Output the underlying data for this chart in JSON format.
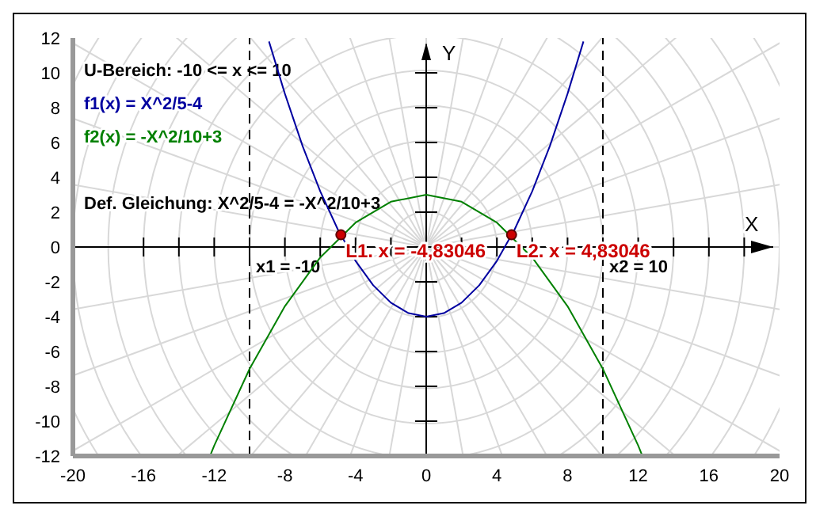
{
  "chart_data": {
    "type": "line",
    "xlabel": "X",
    "ylabel": "Y",
    "xlim": [
      -20,
      20
    ],
    "ylim": [
      -12,
      12
    ],
    "xticks": [
      -20,
      -16,
      -12,
      -8,
      -4,
      0,
      4,
      8,
      12,
      16,
      20
    ],
    "yticks": [
      -12,
      -10,
      -8,
      -6,
      -4,
      -2,
      0,
      2,
      4,
      6,
      8,
      10,
      12
    ],
    "grid": true,
    "marker": "none",
    "annotations": [
      "U-Bereich: -10 <= x <= 10",
      "Def. Gleichung: X^2/5-4 = -X^2/10+3"
    ],
    "ref_lines": [
      {
        "axis": "x",
        "value": -10,
        "label": "x1 = -10",
        "color": "#000000",
        "line_style": "dashed"
      },
      {
        "axis": "x",
        "value": 10,
        "label": "x2 = 10",
        "color": "#000000",
        "line_style": "dashed"
      }
    ],
    "series": [
      {
        "name": "f1(x) = X^2/5-4",
        "color": "#0000a0",
        "x": [
          -8.9,
          -8,
          -7,
          -6,
          -5,
          -4,
          -3,
          -2,
          -1,
          0,
          1,
          2,
          3,
          4,
          5,
          6,
          7,
          8,
          8.9
        ],
        "values": [
          11.8,
          8.8,
          5.8,
          3.2,
          1,
          -0.8,
          -2.2,
          -3.2,
          -3.8,
          -4,
          -3.8,
          -3.2,
          -2.2,
          -0.8,
          1,
          3.2,
          5.8,
          8.8,
          11.8
        ]
      },
      {
        "name": "f2(x) = -X^2/10+3",
        "color": "#008000",
        "x": [
          -12.2,
          -12,
          -10,
          -8,
          -6,
          -4,
          -2,
          0,
          2,
          4,
          6,
          8,
          10,
          12,
          12.2
        ],
        "values": [
          -11.9,
          -11.4,
          -7,
          -3.4,
          -0.6,
          1.4,
          2.6,
          3,
          2.6,
          1.4,
          -0.6,
          -3.4,
          -7,
          -11.4,
          -11.9
        ]
      },
      {
        "color": "#cc0000",
        "type": "scatter",
        "marker": "circle",
        "x": [
          -4.83046,
          4.83046
        ],
        "values": [
          0.7,
          0.7
        ],
        "value_labels": [
          "L1. x = -4,83046",
          "L2. x = 4,83046"
        ]
      }
    ]
  }
}
